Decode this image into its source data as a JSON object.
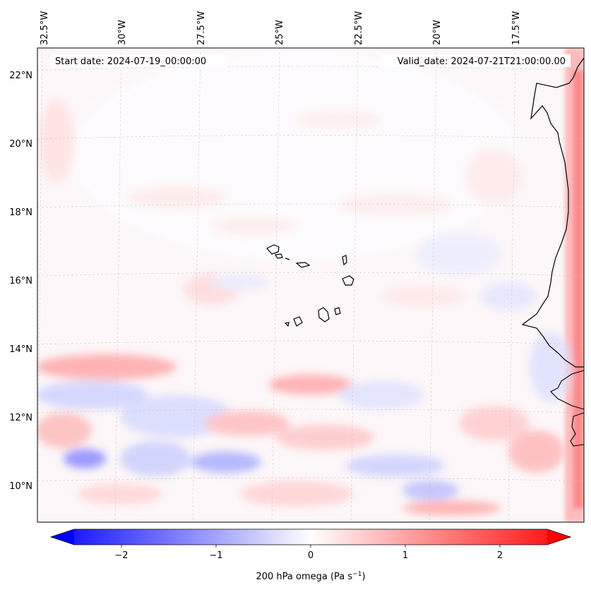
{
  "map": {
    "start_date": "Start date: 2024-07-19_00:00:00",
    "valid_date": "Valid_date: 2024-07-21T21:00:00.00",
    "lon_labels": [
      "32.5°W",
      "30°W",
      "27.5°W",
      "25°W",
      "22.5°W",
      "20°W",
      "17.5°W"
    ],
    "lat_labels": [
      "22°N",
      "20°N",
      "18°N",
      "16°N",
      "14°N",
      "12°N",
      "10°N"
    ],
    "field": "200 hPa omega",
    "features": [
      "coastline-west-africa",
      "cape-verde-islands"
    ]
  },
  "colorbar": {
    "label": "200 hPa omega (Pa s",
    "label_sup": "−1",
    "label_close": ")",
    "ticks": [
      "−2",
      "−1",
      "0",
      "1",
      "2"
    ],
    "tick_values": [
      -2,
      -1,
      0,
      1,
      2
    ],
    "range": [
      -2.5,
      2.5
    ],
    "colors": {
      "low": "#0000ff",
      "mid": "#ffffff",
      "high": "#ff0000"
    },
    "extend": "both"
  }
}
